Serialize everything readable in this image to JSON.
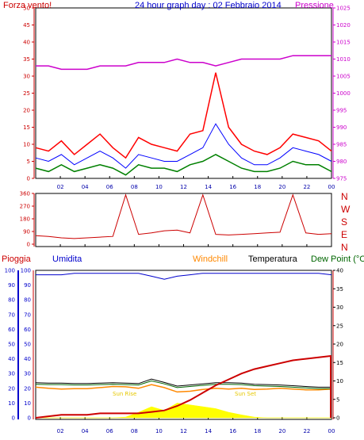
{
  "header": {
    "title": "24 hour graph day : 02 Febbraio 2014",
    "left_label": "Forza vento!",
    "right_label": "Pressione"
  },
  "bottom_header": {
    "rain": "Pioggia",
    "humidity": "Umidita",
    "windchill": "Windchill",
    "temperature": "Temperatura",
    "dewpoint": "Dew Point (°C"
  },
  "direction_labels": [
    "N",
    "W",
    "S",
    "E",
    "N"
  ],
  "annotations": {
    "sun_rise": "Sun Rise",
    "sun_set": "Sun Set"
  },
  "colors": {
    "wind_max": "#ff0000",
    "wind_avg": "#0000ff",
    "wind_min": "#008000",
    "pressure": "#cc00cc",
    "direction": "#cc0000",
    "rain": "#cc0000",
    "humidity": "#0000cc",
    "windchill": "#ff8800",
    "temperature": "#000000",
    "dewpoint": "#006600",
    "solar": "#ffff00",
    "axis_left": "#cc0000",
    "axis_right": "#cc00cc"
  },
  "chart_data": [
    {
      "type": "line",
      "name": "wind-pressure",
      "x_ticks": [
        "02",
        "04",
        "06",
        "08",
        "10",
        "12",
        "14",
        "16",
        "18",
        "20",
        "22",
        "00"
      ],
      "y_left_ticks": [
        0,
        5,
        10,
        15,
        20,
        25,
        30,
        35,
        40,
        45,
        50
      ],
      "ylim_left": [
        0,
        50
      ],
      "y_right_ticks": [
        975,
        980,
        985,
        990,
        995,
        1000,
        1005,
        1010,
        1015,
        1020,
        1025
      ],
      "ylim_right": [
        975,
        1025
      ],
      "series": [
        {
          "name": "Forza vento!",
          "axis": "left",
          "values_hourly": [
            9,
            8,
            11,
            7,
            10,
            13,
            9,
            6,
            12,
            10,
            9,
            8,
            13,
            14,
            31,
            15,
            10,
            8,
            7,
            9,
            13,
            12,
            11,
            8
          ]
        },
        {
          "name": "",
          "axis": "left",
          "values_hourly": [
            6,
            5,
            7,
            4,
            6,
            8,
            6,
            3,
            7,
            6,
            5,
            5,
            7,
            9,
            16,
            10,
            6,
            4,
            4,
            6,
            9,
            8,
            7,
            5
          ]
        },
        {
          "name": "",
          "axis": "left",
          "values_hourly": [
            3,
            2,
            4,
            2,
            3,
            4,
            3,
            1,
            4,
            3,
            3,
            2,
            4,
            5,
            7,
            5,
            3,
            2,
            2,
            3,
            5,
            4,
            4,
            2
          ]
        },
        {
          "name": "Pressione",
          "axis": "right",
          "values_hourly": [
            1008,
            1008,
            1007,
            1007,
            1007,
            1008,
            1008,
            1008,
            1009,
            1009,
            1009,
            1010,
            1009,
            1009,
            1008,
            1009,
            1010,
            1010,
            1010,
            1010,
            1011,
            1011,
            1011,
            1011
          ]
        }
      ]
    },
    {
      "type": "line",
      "name": "wind-direction",
      "x_ticks": [
        "02",
        "04",
        "06",
        "08",
        "10",
        "12",
        "14",
        "16",
        "18",
        "20",
        "22",
        "00"
      ],
      "y_ticks": [
        0,
        90,
        180,
        270,
        360
      ],
      "ylim": [
        0,
        360
      ],
      "direction_labels": [
        "N",
        "W",
        "S",
        "E",
        "N"
      ],
      "series": [
        {
          "name": "",
          "values_hourly": [
            60,
            55,
            45,
            40,
            45,
            50,
            55,
            350,
            70,
            80,
            95,
            100,
            80,
            350,
            70,
            65,
            70,
            75,
            80,
            85,
            350,
            80,
            70,
            75
          ]
        }
      ]
    },
    {
      "type": "line",
      "name": "weather",
      "x_ticks": [
        "02",
        "04",
        "06",
        "08",
        "10",
        "12",
        "14",
        "16",
        "18",
        "20",
        "22",
        "00"
      ],
      "y_left_ticks": [
        0,
        10,
        20,
        30,
        40,
        50,
        60,
        70,
        80,
        90,
        100
      ],
      "ylim_left": [
        0,
        100
      ],
      "y_right_ticks": [
        0,
        5,
        10,
        15,
        20,
        25,
        30,
        35,
        40
      ],
      "ylim_right": [
        0,
        40
      ],
      "series": [
        {
          "name": "Pioggia",
          "axis": "left",
          "values_hourly": [
            0,
            1,
            2,
            2,
            2,
            3,
            3,
            3,
            3,
            4,
            5,
            8,
            12,
            17,
            22,
            26,
            30,
            33,
            35,
            37,
            39,
            40,
            41,
            42
          ]
        },
        {
          "name": "Umidita",
          "axis": "left",
          "values_hourly": [
            97,
            97,
            97,
            98,
            98,
            98,
            98,
            98,
            98,
            96,
            94,
            96,
            97,
            98,
            98,
            98,
            98,
            98,
            98,
            98,
            98,
            98,
            98,
            97
          ]
        },
        {
          "name": "Windchill",
          "axis": "right",
          "values_hourly": [
            8.3,
            8.0,
            7.8,
            7.9,
            7.9,
            8.2,
            8.5,
            8.4,
            8.0,
            9.0,
            8.2,
            7.0,
            7.2,
            7.7,
            8.0,
            7.8,
            8.0,
            7.7,
            7.8,
            8.0,
            7.8,
            7.6,
            7.6,
            7.8
          ]
        },
        {
          "name": "Temperatura",
          "axis": "right",
          "values_hourly": [
            9.5,
            9.4,
            9.4,
            9.3,
            9.3,
            9.4,
            9.5,
            9.4,
            9.3,
            10.5,
            9.6,
            8.6,
            8.9,
            9.2,
            9.5,
            9.5,
            9.4,
            9.1,
            9.0,
            8.9,
            8.7,
            8.5,
            8.3,
            8.3
          ]
        },
        {
          "name": "Dew Point",
          "axis": "right",
          "values_hourly": [
            9.1,
            9.0,
            9.0,
            8.9,
            8.9,
            9.0,
            9.1,
            9.0,
            8.9,
            10.0,
            9.2,
            8.2,
            8.5,
            8.8,
            9.1,
            9.1,
            9.0,
            8.7,
            8.6,
            8.5,
            8.3,
            8.1,
            7.9,
            7.9
          ]
        },
        {
          "name": "",
          "axis": "right",
          "values_hourly": [
            0,
            0,
            0,
            0,
            0,
            0,
            0,
            0.2,
            1.5,
            3.0,
            2.0,
            4.0,
            3.5,
            3.0,
            2.5,
            1.5,
            0.8,
            0.2,
            0,
            0,
            0,
            0,
            0,
            0
          ]
        }
      ]
    }
  ]
}
